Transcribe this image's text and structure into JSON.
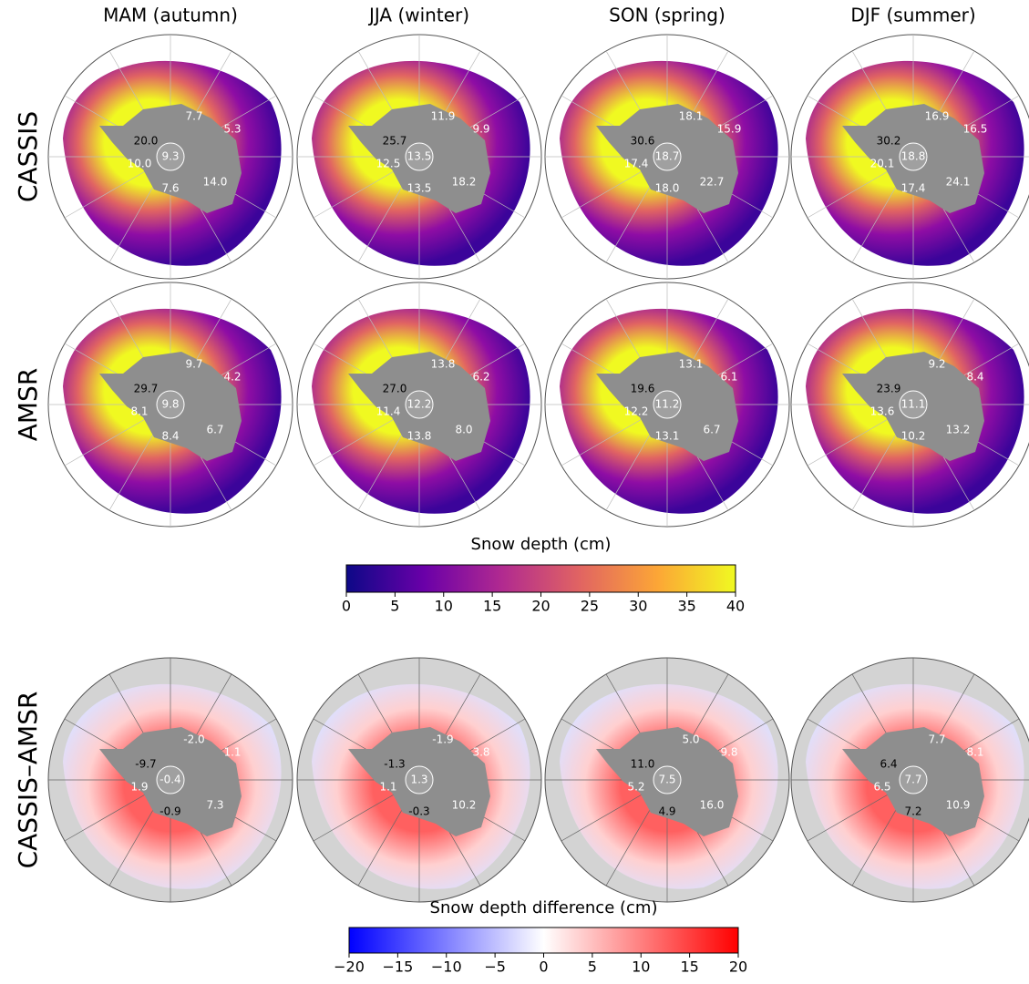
{
  "columns": [
    "MAM (autumn)",
    "JJA (winter)",
    "SON (spring)",
    "DJF (summer)"
  ],
  "rows": [
    {
      "label": "CASSIS",
      "panels": [
        [
          "7.7",
          "5.3",
          "20.0",
          "10.0",
          "9.3",
          "7.6",
          "14.0"
        ],
        [
          "11.9",
          "9.9",
          "25.7",
          "12.5",
          "13.5",
          "13.5",
          "18.2"
        ],
        [
          "18.1",
          "15.9",
          "30.6",
          "17.4",
          "18.7",
          "18.0",
          "22.7"
        ],
        [
          "16.9",
          "16.5",
          "30.2",
          "20.1",
          "18.8",
          "17.4",
          "24.1"
        ]
      ]
    },
    {
      "label": "AMSR",
      "panels": [
        [
          "9.7",
          "4.2",
          "29.7",
          "8.1",
          "9.8",
          "8.4",
          "6.7"
        ],
        [
          "13.8",
          "6.2",
          "27.0",
          "11.4",
          "12.2",
          "13.8",
          "8.0"
        ],
        [
          "13.1",
          "6.1",
          "19.6",
          "12.2",
          "11.2",
          "13.1",
          "6.7"
        ],
        [
          "9.2",
          "8.4",
          "23.9",
          "13.6",
          "11.1",
          "10.2",
          "13.2"
        ]
      ]
    },
    {
      "label": "CASSIS–AMSR",
      "panels": [
        [
          "-2.0",
          "1.1",
          "-9.7",
          "1.9",
          "-0.4",
          "-0.9",
          "7.3"
        ],
        [
          "-1.9",
          "3.8",
          "-1.3",
          "1.1",
          "1.3",
          "-0.3",
          "10.2"
        ],
        [
          "5.0",
          "9.8",
          "11.0",
          "5.2",
          "7.5",
          "4.9",
          "16.0"
        ],
        [
          "7.7",
          "8.1",
          "6.4",
          "6.5",
          "7.7",
          "7.2",
          "10.9"
        ]
      ]
    }
  ],
  "colorbars": [
    {
      "label": "Snow depth (cm)",
      "lim": [
        0,
        40
      ],
      "ticks": [
        0,
        5,
        10,
        15,
        20,
        25,
        30,
        35,
        40
      ],
      "colormap": [
        "#0d0887",
        "#6a00a8",
        "#b12a90",
        "#e16462",
        "#fca636",
        "#f0f921"
      ]
    },
    {
      "label": "Snow depth difference (cm)",
      "lim": [
        -20,
        20
      ],
      "ticks": [
        {
          "value": -20,
          "label": "−20"
        },
        {
          "value": -15,
          "label": "−15"
        },
        {
          "value": -10,
          "label": "−10"
        },
        {
          "value": -5,
          "label": "−5"
        },
        0,
        5,
        10,
        15,
        20
      ],
      "colormap": [
        "#0000ff",
        "#ffffff",
        "#ff0000"
      ]
    }
  ]
}
